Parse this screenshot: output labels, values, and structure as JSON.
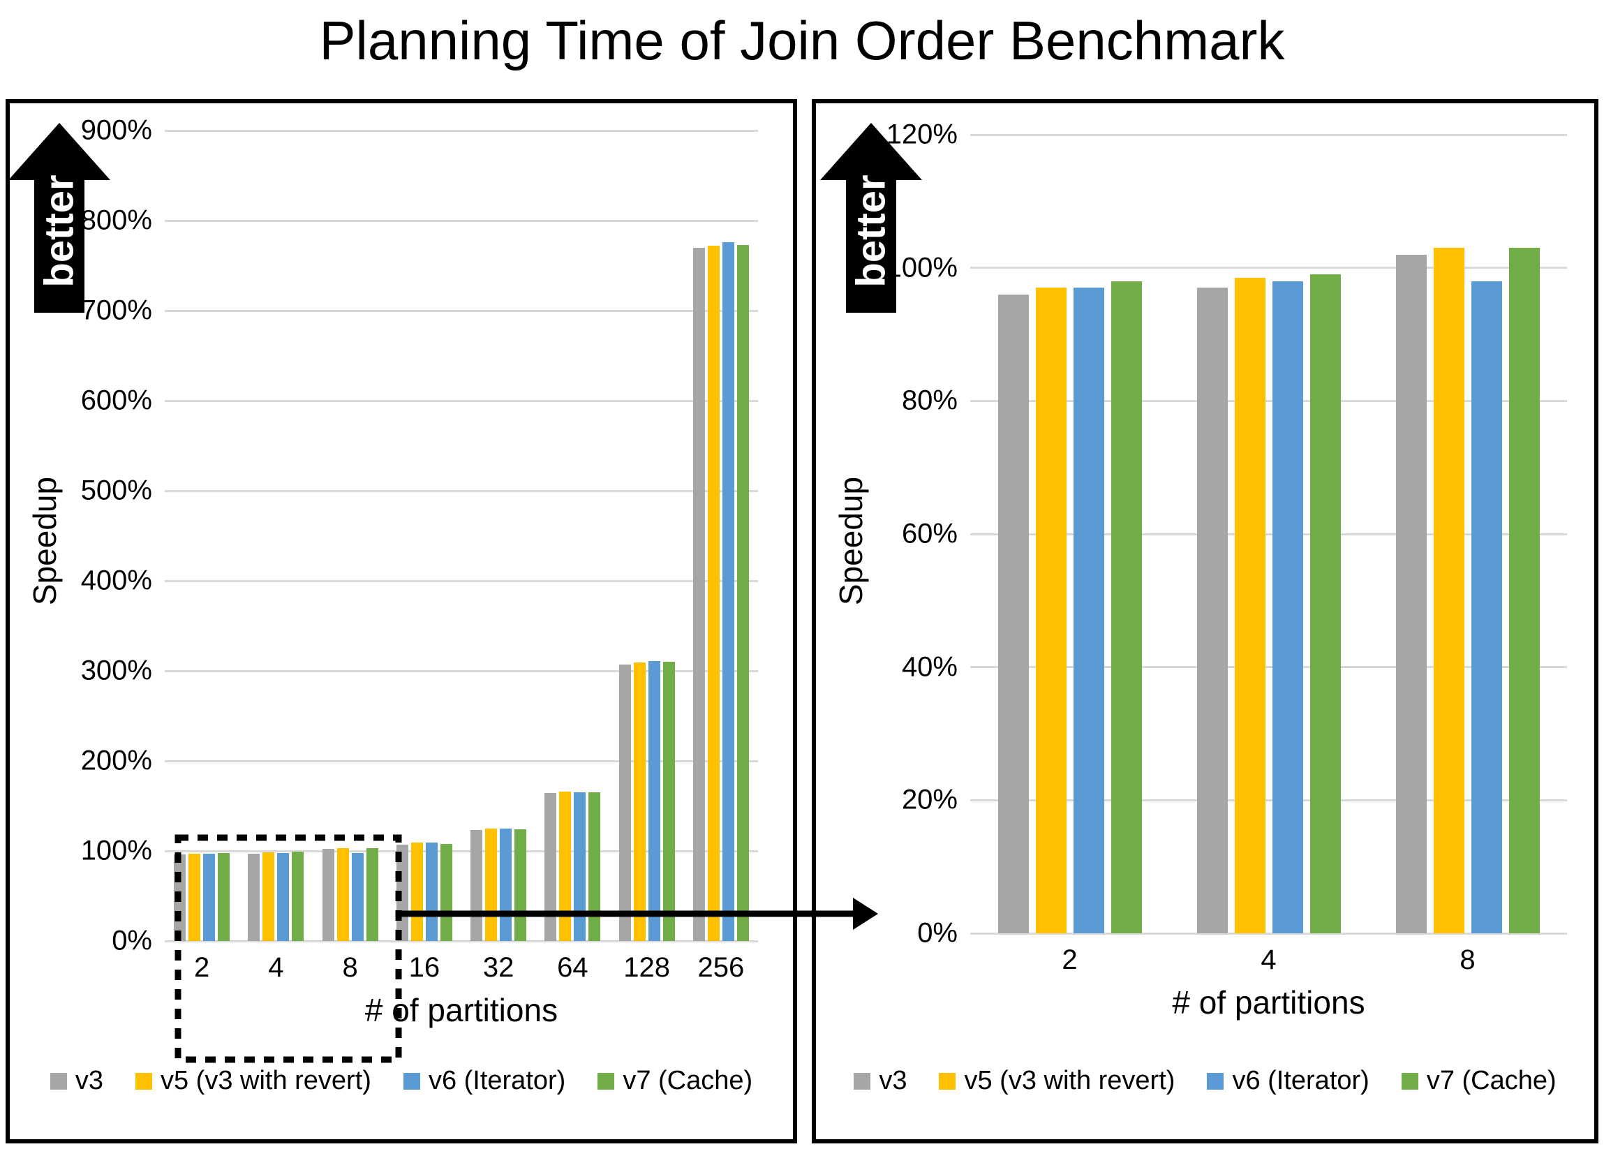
{
  "title": "Planning Time of Join Order Benchmark",
  "better_label": "better",
  "palette": {
    "v3": "#A6A6A6",
    "v5": "#FFC000",
    "v6": "#5B9BD5",
    "v7": "#70AD47",
    "gridline": "#D9D9D9",
    "border": "#000000"
  },
  "chart_data": [
    {
      "type": "bar",
      "panel": "full-range",
      "ylabel": "Speedup",
      "xlabel": "# of partitions",
      "ylim": [
        0,
        900
      ],
      "grid": true,
      "legend_position": "bottom",
      "yticks": [
        {
          "value": 900,
          "label": "900%"
        },
        {
          "value": 800,
          "label": "800%"
        },
        {
          "value": 700,
          "label": "700%"
        },
        {
          "value": 600,
          "label": "600%"
        },
        {
          "value": 500,
          "label": "500%"
        },
        {
          "value": 400,
          "label": "400%"
        },
        {
          "value": 300,
          "label": "300%"
        },
        {
          "value": 200,
          "label": "200%"
        },
        {
          "value": 100,
          "label": "100%"
        },
        {
          "value": 0,
          "label": "0%"
        }
      ],
      "categories": [
        "2",
        "4",
        "8",
        "16",
        "32",
        "64",
        "128",
        "256"
      ],
      "series": [
        {
          "name": "v3",
          "color": "#A6A6A6",
          "values": [
            96,
            97,
            102,
            107,
            123,
            164,
            307,
            770
          ]
        },
        {
          "name": "v5 (v3 with revert)",
          "color": "#FFC000",
          "values": [
            97,
            98.5,
            103,
            109,
            125,
            166,
            309,
            772
          ]
        },
        {
          "name": "v6 (Iterator)",
          "color": "#5B9BD5",
          "values": [
            97,
            98,
            98,
            109,
            125,
            165,
            311,
            776
          ]
        },
        {
          "name": "v7 (Cache)",
          "color": "#70AD47",
          "values": [
            98,
            99,
            103,
            108,
            124,
            165,
            310,
            773
          ]
        }
      ],
      "annotation": {
        "type": "zoom-link-box",
        "boxed_categories": [
          "2",
          "4",
          "8"
        ],
        "arrow_target": "right panel"
      }
    },
    {
      "type": "bar",
      "panel": "zoomed 2-4-8",
      "ylabel": "Speedup",
      "xlabel": "# of partitions",
      "ylim": [
        0,
        120
      ],
      "grid": true,
      "legend_position": "bottom",
      "yticks": [
        {
          "value": 120,
          "label": "120%"
        },
        {
          "value": 100,
          "label": "100%"
        },
        {
          "value": 80,
          "label": "80%"
        },
        {
          "value": 60,
          "label": "60%"
        },
        {
          "value": 40,
          "label": "40%"
        },
        {
          "value": 20,
          "label": "20%"
        },
        {
          "value": 0,
          "label": "0%"
        }
      ],
      "categories": [
        "2",
        "4",
        "8"
      ],
      "series": [
        {
          "name": "v3",
          "color": "#A6A6A6",
          "values": [
            96,
            97,
            102
          ]
        },
        {
          "name": "v5 (v3 with revert)",
          "color": "#FFC000",
          "values": [
            97,
            98.5,
            103
          ]
        },
        {
          "name": "v6 (Iterator)",
          "color": "#5B9BD5",
          "values": [
            97,
            98,
            98
          ]
        },
        {
          "name": "v7 (Cache)",
          "color": "#70AD47",
          "values": [
            98,
            99,
            103
          ]
        }
      ]
    }
  ]
}
